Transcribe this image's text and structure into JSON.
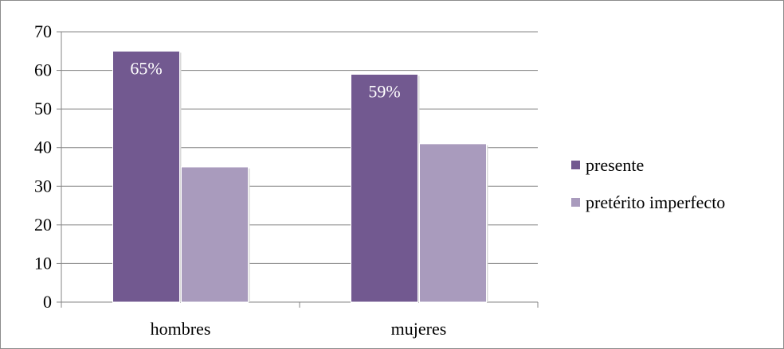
{
  "chart_data": {
    "type": "bar",
    "categories": [
      "hombres",
      "mujeres"
    ],
    "series": [
      {
        "name": "presente",
        "values": [
          65,
          59
        ],
        "color": "#725990",
        "data_labels": [
          "65%",
          "59%"
        ]
      },
      {
        "name": "pretérito imperfecto",
        "values": [
          35,
          41
        ],
        "color": "#a99bbd"
      }
    ],
    "y_ticks": [
      "0",
      "10",
      "20",
      "30",
      "40",
      "50",
      "60",
      "70"
    ],
    "ylim": [
      0,
      70
    ],
    "grid": true,
    "legend_position": "right"
  }
}
